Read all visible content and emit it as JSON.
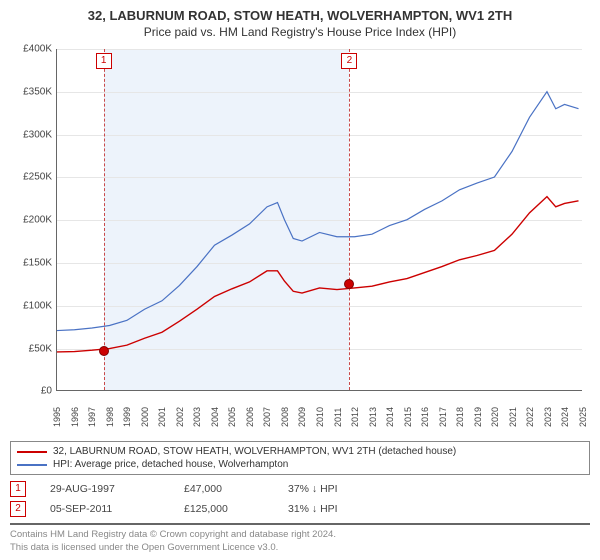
{
  "titles": {
    "line1": "32, LABURNUM ROAD, STOW HEATH, WOLVERHAMPTON, WV1 2TH",
    "line2": "Price paid vs. HM Land Registry's House Price Index (HPI)"
  },
  "chart": {
    "type": "line",
    "x_years": [
      1995,
      1996,
      1997,
      1998,
      1999,
      2000,
      2001,
      2002,
      2003,
      2004,
      2005,
      2006,
      2007,
      2008,
      2009,
      2010,
      2011,
      2012,
      2013,
      2014,
      2015,
      2016,
      2017,
      2018,
      2019,
      2020,
      2021,
      2022,
      2023,
      2024,
      2025
    ],
    "x_min": 1995,
    "x_max": 2025,
    "y_min": 0,
    "y_max": 400000,
    "y_tick_step": 50000,
    "y_tick_labels": [
      "£0",
      "£50K",
      "£100K",
      "£150K",
      "£200K",
      "£250K",
      "£300K",
      "£350K",
      "£400K"
    ],
    "highlight_band": {
      "start": 1997.66,
      "end": 2011.68,
      "color": "#edf3fb"
    },
    "grid_color": "#e6e6e6",
    "axis_color": "#666666",
    "background_color": "#ffffff",
    "series": [
      {
        "id": "hpi",
        "label": "HPI: Average price, detached house, Wolverhampton",
        "color": "#4a72c4",
        "width": 1.2,
        "data": [
          [
            1995,
            70000
          ],
          [
            1996,
            71000
          ],
          [
            1997,
            73000
          ],
          [
            1998,
            76000
          ],
          [
            1999,
            82000
          ],
          [
            2000,
            95000
          ],
          [
            2001,
            105000
          ],
          [
            2002,
            123000
          ],
          [
            2003,
            145000
          ],
          [
            2004,
            170000
          ],
          [
            2005,
            182000
          ],
          [
            2006,
            195000
          ],
          [
            2007,
            215000
          ],
          [
            2007.6,
            220000
          ],
          [
            2008,
            200000
          ],
          [
            2008.5,
            178000
          ],
          [
            2009,
            175000
          ],
          [
            2010,
            185000
          ],
          [
            2011,
            180000
          ],
          [
            2012,
            180000
          ],
          [
            2013,
            183000
          ],
          [
            2014,
            193000
          ],
          [
            2015,
            200000
          ],
          [
            2016,
            212000
          ],
          [
            2017,
            222000
          ],
          [
            2018,
            235000
          ],
          [
            2019,
            243000
          ],
          [
            2020,
            250000
          ],
          [
            2021,
            280000
          ],
          [
            2022,
            320000
          ],
          [
            2023,
            350000
          ],
          [
            2023.5,
            330000
          ],
          [
            2024,
            335000
          ],
          [
            2024.8,
            330000
          ]
        ]
      },
      {
        "id": "price_paid",
        "label": "32, LABURNUM ROAD, STOW HEATH, WOLVERHAMPTON, WV1 2TH (detached house)",
        "color": "#cc0000",
        "width": 1.4,
        "data": [
          [
            1995,
            45000
          ],
          [
            1996,
            45500
          ],
          [
            1997,
            47000
          ],
          [
            1998,
            49000
          ],
          [
            1999,
            53000
          ],
          [
            2000,
            61000
          ],
          [
            2001,
            68000
          ],
          [
            2002,
            81000
          ],
          [
            2003,
            95000
          ],
          [
            2004,
            110000
          ],
          [
            2005,
            119000
          ],
          [
            2006,
            127000
          ],
          [
            2007,
            140000
          ],
          [
            2007.6,
            140000
          ],
          [
            2008,
            128000
          ],
          [
            2008.5,
            116000
          ],
          [
            2009,
            114000
          ],
          [
            2010,
            120000
          ],
          [
            2011,
            118000
          ],
          [
            2012,
            120000
          ],
          [
            2013,
            122000
          ],
          [
            2014,
            127000
          ],
          [
            2015,
            131000
          ],
          [
            2016,
            138000
          ],
          [
            2017,
            145000
          ],
          [
            2018,
            153000
          ],
          [
            2019,
            158000
          ],
          [
            2020,
            164000
          ],
          [
            2021,
            183000
          ],
          [
            2022,
            208000
          ],
          [
            2023,
            227000
          ],
          [
            2023.5,
            215000
          ],
          [
            2024,
            219000
          ],
          [
            2024.8,
            222000
          ]
        ]
      }
    ],
    "markers": [
      {
        "num": "1",
        "year": 1997.66,
        "price": 47000,
        "color": "#cc0000"
      },
      {
        "num": "2",
        "year": 2011.68,
        "price": 125000,
        "color": "#cc0000"
      }
    ]
  },
  "legend": {
    "items": [
      {
        "color": "#cc0000",
        "text": "32, LABURNUM ROAD, STOW HEATH, WOLVERHAMPTON, WV1 2TH (detached house)"
      },
      {
        "color": "#4a72c4",
        "text": "HPI: Average price, detached house, Wolverhampton"
      }
    ]
  },
  "sales": [
    {
      "num": "1",
      "date": "29-AUG-1997",
      "price": "£47,000",
      "diff": "37% ↓ HPI"
    },
    {
      "num": "2",
      "date": "05-SEP-2011",
      "price": "£125,000",
      "diff": "31% ↓ HPI"
    }
  ],
  "footer": {
    "line1": "Contains HM Land Registry data © Crown copyright and database right 2024.",
    "line2": "This data is licensed under the Open Government Licence v3.0."
  }
}
